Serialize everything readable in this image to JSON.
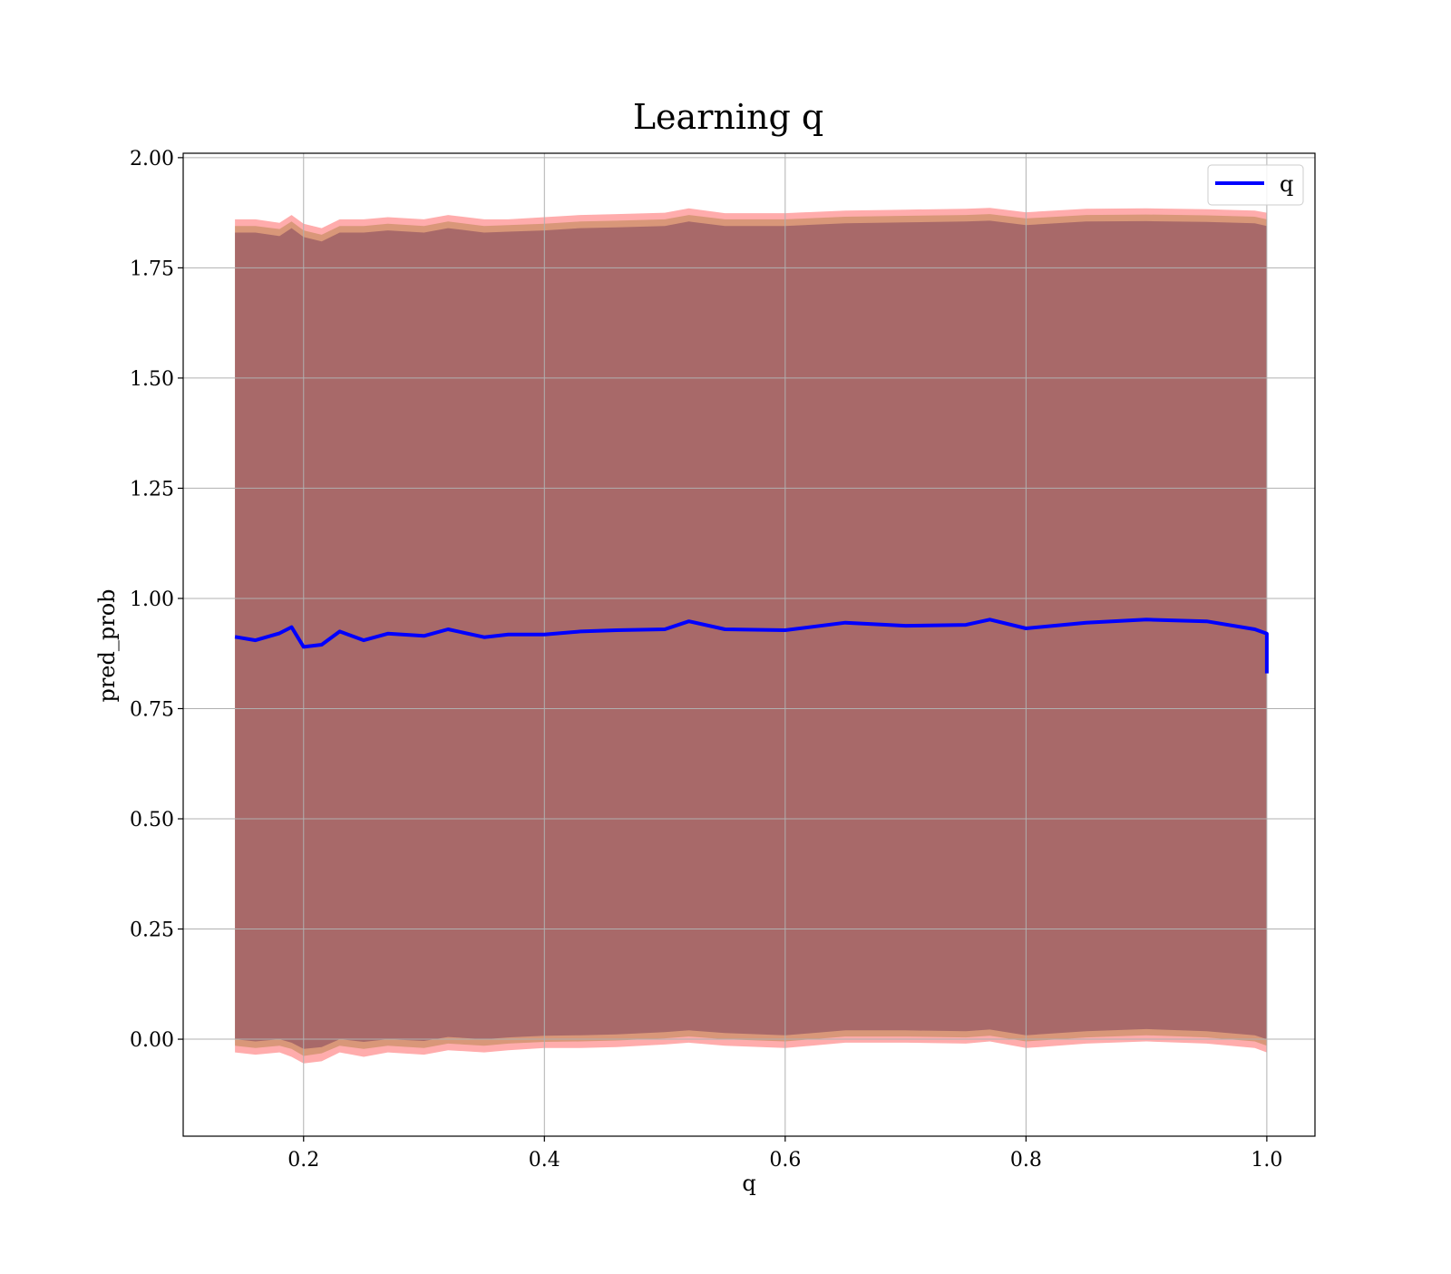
{
  "chart_data": {
    "type": "line",
    "title": "Learning q",
    "xlabel": "q",
    "ylabel": "pred_prob",
    "xlim": [
      0.1,
      1.04
    ],
    "ylim": [
      -0.22,
      2.01
    ],
    "xticks": [
      0.2,
      0.4,
      0.6,
      0.8,
      1.0
    ],
    "xtick_labels": [
      "0.2",
      "0.4",
      "0.6",
      "0.8",
      "1.0"
    ],
    "yticks": [
      0.0,
      0.25,
      0.5,
      0.75,
      1.0,
      1.25,
      1.5,
      1.75,
      2.0
    ],
    "ytick_labels": [
      "0.00",
      "0.25",
      "0.50",
      "0.75",
      "1.00",
      "1.25",
      "1.50",
      "1.75",
      "2.00"
    ],
    "grid": true,
    "legend_position": "top-right",
    "series": [
      {
        "name": "q",
        "color": "#0000ff",
        "x": [
          0.143,
          0.16,
          0.18,
          0.19,
          0.2,
          0.215,
          0.23,
          0.25,
          0.27,
          0.3,
          0.32,
          0.35,
          0.37,
          0.4,
          0.43,
          0.46,
          0.5,
          0.52,
          0.55,
          0.6,
          0.65,
          0.7,
          0.75,
          0.77,
          0.8,
          0.85,
          0.9,
          0.95,
          0.99,
          1.0,
          1.0
        ],
        "y": [
          0.913,
          0.905,
          0.921,
          0.935,
          0.89,
          0.895,
          0.925,
          0.905,
          0.92,
          0.915,
          0.93,
          0.912,
          0.918,
          0.918,
          0.925,
          0.928,
          0.93,
          0.948,
          0.93,
          0.928,
          0.945,
          0.938,
          0.94,
          0.952,
          0.932,
          0.945,
          0.952,
          0.948,
          0.93,
          0.92,
          0.83
        ]
      }
    ],
    "bands": [
      {
        "role": "outer",
        "color": "#ff5a5a",
        "upper": [
          1.86,
          1.86,
          1.852,
          1.87,
          1.85,
          1.84,
          1.86,
          1.86,
          1.865,
          1.86,
          1.87,
          1.86,
          1.86,
          1.865,
          1.87,
          1.872,
          1.875,
          1.885,
          1.874,
          1.874,
          1.88,
          1.882,
          1.884,
          1.886,
          1.876,
          1.884,
          1.885,
          1.883,
          1.88,
          1.875,
          1.875
        ],
        "lower": [
          -0.03,
          -0.035,
          -0.03,
          -0.04,
          -0.055,
          -0.05,
          -0.03,
          -0.04,
          -0.03,
          -0.035,
          -0.025,
          -0.03,
          -0.025,
          -0.02,
          -0.02,
          -0.018,
          -0.012,
          -0.008,
          -0.015,
          -0.02,
          -0.008,
          -0.008,
          -0.01,
          -0.005,
          -0.02,
          -0.01,
          -0.005,
          -0.01,
          -0.02,
          -0.03,
          -0.12
        ]
      },
      {
        "role": "middle",
        "color": "#b48246",
        "upper": [
          1.845,
          1.845,
          1.838,
          1.855,
          1.835,
          1.825,
          1.845,
          1.845,
          1.85,
          1.845,
          1.855,
          1.845,
          1.847,
          1.85,
          1.855,
          1.857,
          1.86,
          1.87,
          1.86,
          1.86,
          1.866,
          1.868,
          1.87,
          1.872,
          1.862,
          1.87,
          1.871,
          1.869,
          1.866,
          1.86,
          1.86
        ],
        "lower": [
          -0.015,
          -0.02,
          -0.015,
          -0.022,
          -0.038,
          -0.032,
          -0.015,
          -0.022,
          -0.015,
          -0.02,
          -0.01,
          -0.015,
          -0.01,
          -0.006,
          -0.005,
          -0.003,
          0.002,
          0.006,
          0.0,
          -0.005,
          0.006,
          0.006,
          0.004,
          0.008,
          -0.005,
          0.004,
          0.009,
          0.004,
          -0.005,
          -0.015,
          -0.08
        ]
      },
      {
        "role": "inner",
        "color": "#783c5a",
        "upper": [
          1.83,
          1.83,
          1.822,
          1.84,
          1.82,
          1.81,
          1.83,
          1.83,
          1.835,
          1.83,
          1.84,
          1.83,
          1.832,
          1.835,
          1.84,
          1.842,
          1.845,
          1.855,
          1.845,
          1.845,
          1.851,
          1.853,
          1.855,
          1.857,
          1.847,
          1.855,
          1.856,
          1.854,
          1.851,
          1.845,
          1.845
        ],
        "lower": [
          0.0,
          -0.005,
          0.0,
          -0.008,
          -0.022,
          -0.018,
          0.0,
          -0.006,
          0.0,
          -0.004,
          0.005,
          0.0,
          0.004,
          0.008,
          0.009,
          0.011,
          0.016,
          0.02,
          0.014,
          0.009,
          0.02,
          0.02,
          0.018,
          0.022,
          0.009,
          0.018,
          0.023,
          0.018,
          0.009,
          0.0,
          -0.05
        ]
      }
    ]
  }
}
